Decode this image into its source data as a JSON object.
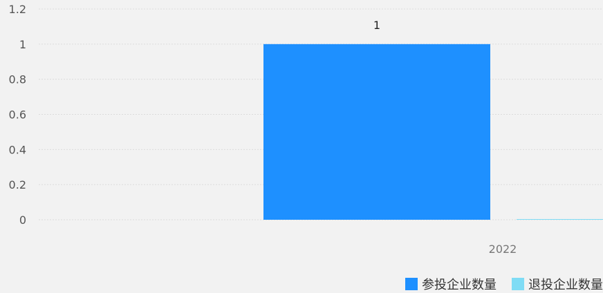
{
  "chart_data": {
    "type": "bar",
    "categories": [
      "2022"
    ],
    "series": [
      {
        "name": "参投企业数量",
        "values": [
          1
        ],
        "color": "#1e90ff",
        "label_values": true
      },
      {
        "name": "退投企业数量",
        "values": [
          0
        ],
        "color": "#7fdcf5",
        "label_values": false
      }
    ],
    "ylim": [
      0,
      1.2
    ],
    "yticks": [
      "0",
      "0.2",
      "0.4",
      "0.6",
      "0.8",
      "1",
      "1.2"
    ],
    "grid": true,
    "legend_position": "bottom-right"
  }
}
